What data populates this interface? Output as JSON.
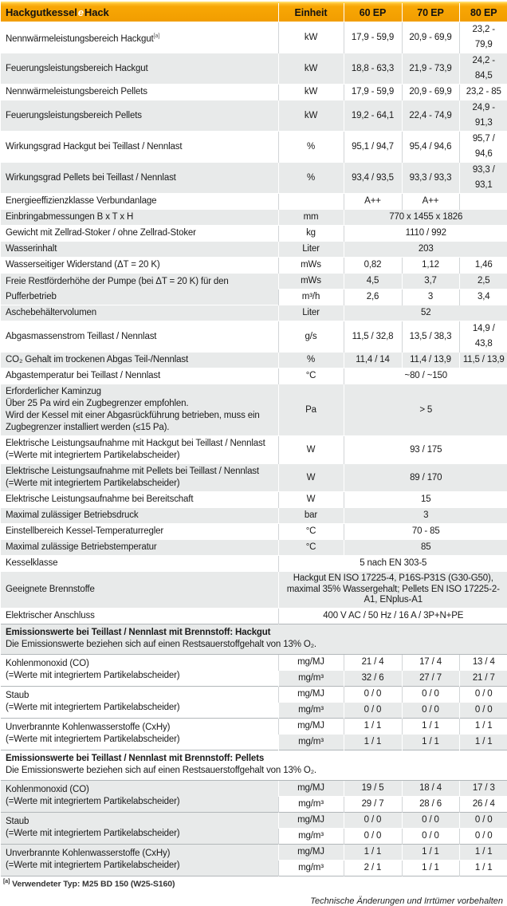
{
  "title": {
    "prefix": "Hackgutkessel",
    "accent": "e",
    "suffix": "Hack"
  },
  "columns": {
    "unit": "Einheit",
    "models": [
      "60 EP",
      "70 EP",
      "80 EP"
    ]
  },
  "colors": {
    "header_orange": "#F7A600",
    "header_orange_light": "#FFC033",
    "stripe_gray": "#E8EAEA",
    "accent_e": "#FFFFFF",
    "text": "#1A1A1A"
  },
  "rows": [
    {
      "type": "row",
      "label": "Nennwärmeleistungsbereich Hackgut",
      "sup": "[a]",
      "unit": "kW",
      "vals": [
        "17,9 - 59,9",
        "20,9 - 69,9",
        "23,2 - 79,9"
      ]
    },
    {
      "type": "row",
      "label": "Feuerungsleistungsbereich Hackgut",
      "unit": "kW",
      "vals": [
        "18,8 - 63,3",
        "21,9 - 73,9",
        "24,2 - 84,5"
      ]
    },
    {
      "type": "row",
      "label": "Nennwärmeleistungsbereich Pellets",
      "unit": "kW",
      "vals": [
        "17,9 - 59,9",
        "20,9 - 69,9",
        "23,2 - 85"
      ]
    },
    {
      "type": "row",
      "label": "Feuerungsleistungsbereich Pellets",
      "unit": "kW",
      "vals": [
        "19,2 - 64,1",
        "22,4 - 74,9",
        "24,9 - 91,3"
      ]
    },
    {
      "type": "row",
      "label": "Wirkungsgrad Hackgut bei Teillast / Nennlast",
      "unit": "%",
      "vals": [
        "95,1 / 94,7",
        "95,4 / 94,6",
        "95,7 / 94,6"
      ]
    },
    {
      "type": "row",
      "label": "Wirkungsgrad Pellets bei Teillast / Nennlast",
      "unit": "%",
      "vals": [
        "93,4 / 93,5",
        "93,3 / 93,3",
        "93,3 / 93,1"
      ]
    },
    {
      "type": "row",
      "label": "Energieeffizienzklasse Verbundanlage",
      "unit": "",
      "vals": [
        "A++",
        "A++",
        ""
      ]
    },
    {
      "type": "span",
      "label": "Einbringabmessungen B x T x H",
      "unit": "mm",
      "val": "770 x 1455 x 1826"
    },
    {
      "type": "span",
      "label": "Gewicht mit Zellrad-Stoker / ohne Zellrad-Stoker",
      "unit": "kg",
      "val": "1110 / 992"
    },
    {
      "type": "span",
      "label": "Wasserinhalt",
      "unit": "Liter",
      "val": "203"
    },
    {
      "type": "row",
      "label": "Wasserseitiger Widerstand (ΔT = 20 K)",
      "unit": "mWs",
      "vals": [
        "0,82",
        "1,12",
        "1,46"
      ]
    },
    {
      "type": "dual",
      "label": "Freie Restförderhöhe der Pumpe (bei ΔT = 20 K) für den Pufferbetrieb",
      "subs": [
        {
          "unit": "mWs",
          "vals": [
            "4,5",
            "3,7",
            "2,5"
          ]
        },
        {
          "unit": "m³/h",
          "vals": [
            "2,6",
            "3",
            "3,4"
          ]
        }
      ]
    },
    {
      "type": "span",
      "label": "Aschebehältervolumen",
      "unit": "Liter",
      "val": "52"
    },
    {
      "type": "row",
      "label": "Abgasmassenstrom Teillast / Nennlast",
      "unit": "g/s",
      "vals": [
        "11,5 / 32,8",
        "13,5 / 38,3",
        "14,9 / 43,8"
      ]
    },
    {
      "type": "row",
      "label": "CO₂ Gehalt im trockenen Abgas Teil-/Nennlast",
      "unit": "%",
      "vals": [
        "11,4 / 14",
        "11,4 / 13,9",
        "11,5 / 13,9"
      ]
    },
    {
      "type": "span",
      "label": "Abgastemperatur bei Teillast / Nennlast",
      "unit": "°C",
      "val": "~80 / ~150"
    },
    {
      "type": "span",
      "label": "Erforderlicher Kaminzug\nÜber 25 Pa wird ein Zugbegrenzer empfohlen.\nWird der Kessel mit einer Abgasrückführung betrieben, muss ein Zugbegrenzer installiert werden (≤15 Pa).",
      "multiline": true,
      "unit": "Pa",
      "val": "> 5"
    },
    {
      "type": "span",
      "label": "Elektrische Leistungsaufnahme mit Hackgut bei Teillast / Nennlast",
      "note": "(=Werte mit integriertem Partikelabscheider)",
      "unit": "W",
      "val": "93 / 175"
    },
    {
      "type": "span",
      "label": "Elektrische Leistungsaufnahme mit Pellets bei Teillast / Nennlast",
      "note": "(=Werte mit integriertem Partikelabscheider)",
      "unit": "W",
      "val": "89 / 170"
    },
    {
      "type": "span",
      "label": "Elektrische Leistungsaufnahme bei Bereitschaft",
      "unit": "W",
      "val": "15"
    },
    {
      "type": "span",
      "label": "Maximal zulässiger Betriebsdruck",
      "unit": "bar",
      "val": "3"
    },
    {
      "type": "span",
      "label": "Einstellbereich Kessel-Temperaturregler",
      "unit": "°C",
      "val": "70 - 85"
    },
    {
      "type": "span",
      "label": "Maximal zulässige Betriebstemperatur",
      "unit": "°C",
      "val": "85"
    },
    {
      "type": "wide",
      "label": "Kesselklasse",
      "val": "5 nach EN 303-5"
    },
    {
      "type": "wide",
      "label": "Geeignete Brennstoffe",
      "val": "Hackgut EN ISO 17225-4, P16S-P31S (G30-G50), maximal 35% Wassergehalt; Pellets EN ISO 17225-2-A1, ENplus-A1",
      "wrap": true
    },
    {
      "type": "wide",
      "label": "Elektrischer Anschluss",
      "val": "400 V AC / 50 Hz / 16 A / 3P+N+PE"
    },
    {
      "type": "sect",
      "title": "Emissionswerte bei Teillast / Nennlast mit Brennstoff: Hackgut",
      "sub": "Die Emissionswerte beziehen sich auf einen Restsauerstoffgehalt von 13% O₂."
    },
    {
      "type": "dual",
      "block": true,
      "label": "Kohlenmonoxid (CO)",
      "note": "(=Werte mit integriertem Partikelabscheider)",
      "subs": [
        {
          "unit": "mg/MJ",
          "vals": [
            "21 / 4",
            "17 / 4",
            "13 / 4"
          ]
        },
        {
          "unit": "mg/m³",
          "vals": [
            "32 / 6",
            "27 / 7",
            "21 / 7"
          ]
        }
      ]
    },
    {
      "type": "dual",
      "block": true,
      "label": "Staub",
      "note": "(=Werte mit integriertem Partikelabscheider)",
      "subs": [
        {
          "unit": "mg/MJ",
          "vals": [
            "0 / 0",
            "0 / 0",
            "0 / 0"
          ]
        },
        {
          "unit": "mg/m³",
          "vals": [
            "0 / 0",
            "0 / 0",
            "0 / 0"
          ]
        }
      ]
    },
    {
      "type": "dual",
      "block": true,
      "label": "Unverbrannte Kohlenwasserstoffe (CxHy)",
      "note": "(=Werte mit integriertem Partikelabscheider)",
      "subs": [
        {
          "unit": "mg/MJ",
          "vals": [
            "1 / 1",
            "1 / 1",
            "1 / 1"
          ]
        },
        {
          "unit": "mg/m³",
          "vals": [
            "1 / 1",
            "1 / 1",
            "1 / 1"
          ]
        }
      ]
    },
    {
      "type": "sect",
      "title": "Emissionswerte bei Teillast / Nennlast mit Brennstoff: Pellets",
      "sub": "Die Emissionswerte beziehen sich auf einen Restsauerstoffgehalt von 13% O₂."
    },
    {
      "type": "dual",
      "block": true,
      "label": "Kohlenmonoxid (CO)",
      "note": "(=Werte mit integriertem Partikelabscheider)",
      "subs": [
        {
          "unit": "mg/MJ",
          "vals": [
            "19 / 5",
            "18 / 4",
            "17 / 3"
          ]
        },
        {
          "unit": "mg/m³",
          "vals": [
            "29 / 7",
            "28 / 6",
            "26 / 4"
          ]
        }
      ]
    },
    {
      "type": "dual",
      "block": true,
      "label": "Staub",
      "note": "(=Werte mit integriertem Partikelabscheider)",
      "subs": [
        {
          "unit": "mg/MJ",
          "vals": [
            "0 / 0",
            "0 / 0",
            "0 / 0"
          ]
        },
        {
          "unit": "mg/m³",
          "vals": [
            "0 / 0",
            "0 / 0",
            "0 / 0"
          ]
        }
      ]
    },
    {
      "type": "dual",
      "block": true,
      "label": "Unverbrannte Kohlenwasserstoffe (CxHy)",
      "note": "(=Werte mit integriertem Partikelabscheider)",
      "subs": [
        {
          "unit": "mg/MJ",
          "vals": [
            "1 / 1",
            "1 / 1",
            "1 / 1"
          ]
        },
        {
          "unit": "mg/m³",
          "vals": [
            "2 / 1",
            "1 / 1",
            "1 / 1"
          ]
        }
      ]
    }
  ],
  "footnote": {
    "marker": "[a]",
    "text": "Verwendeter Typ: M25 BD 150 (W25-S160)"
  },
  "footer": "Technische Änderungen und Irrtümer vorbehalten"
}
